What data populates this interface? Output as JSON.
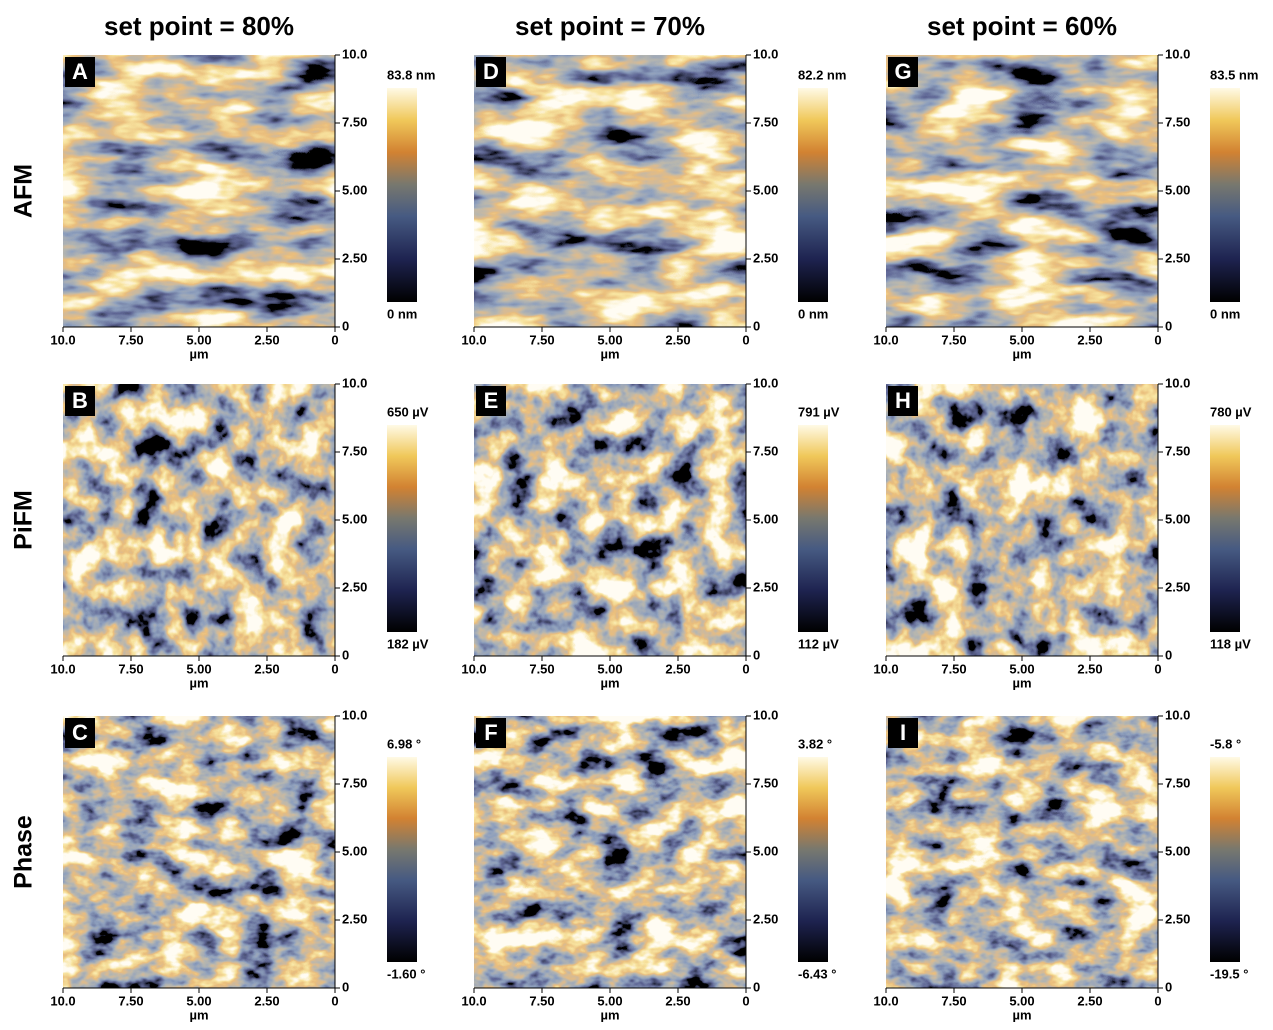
{
  "columns": [
    {
      "title": "set point = 80%"
    },
    {
      "title": "set point = 70%"
    },
    {
      "title": "set point = 60%"
    }
  ],
  "rows": [
    "AFM",
    "PiFM",
    "Phase"
  ],
  "axis": {
    "ticks": [
      "10.0",
      "7.50",
      "5.00",
      "2.50",
      "0"
    ],
    "unit": "µm"
  },
  "panels": [
    [
      {
        "letter": "A",
        "max": "83.8 nm",
        "min": "0 nm"
      },
      {
        "letter": "D",
        "max": "82.2 nm",
        "min": "0 nm"
      },
      {
        "letter": "G",
        "max": "83.5 nm",
        "min": "0 nm"
      }
    ],
    [
      {
        "letter": "B",
        "max": "650 µV",
        "min": "182 µV"
      },
      {
        "letter": "E",
        "max": "791 µV",
        "min": "112 µV"
      },
      {
        "letter": "H",
        "max": "780 µV",
        "min": "118  µV"
      }
    ],
    [
      {
        "letter": "C",
        "max": "6.98 °",
        "min": "-1.60 °"
      },
      {
        "letter": "F",
        "max": "3.82 °",
        "min": "-6.43 °"
      },
      {
        "letter": "I",
        "max": "-5.8 °",
        "min": "-19.5 °"
      }
    ]
  ]
}
